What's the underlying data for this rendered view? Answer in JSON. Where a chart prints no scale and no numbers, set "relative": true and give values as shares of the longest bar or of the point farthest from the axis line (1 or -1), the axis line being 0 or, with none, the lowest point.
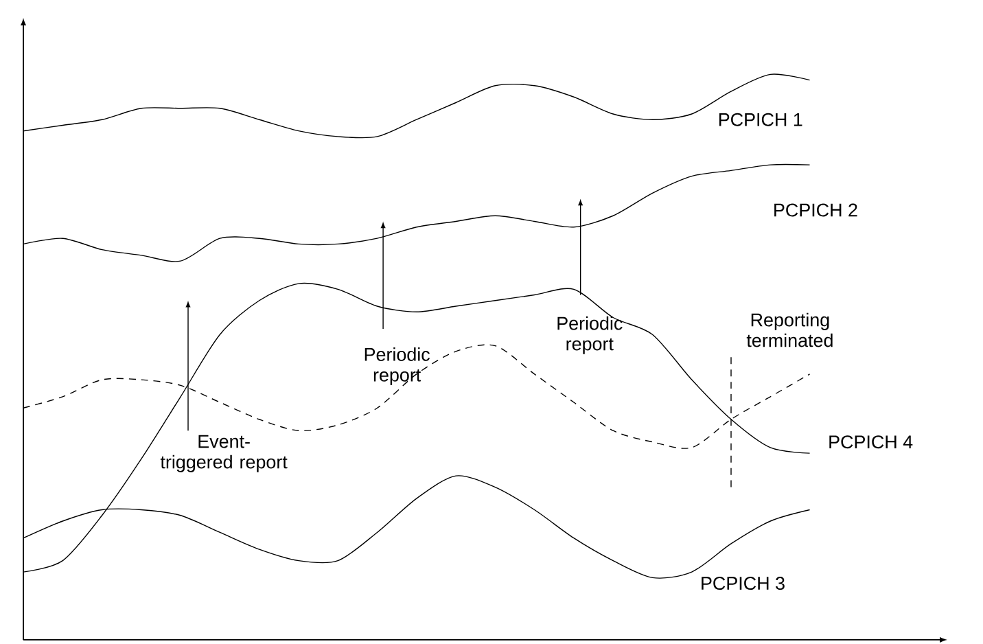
{
  "chart_data": {
    "type": "line",
    "relative": true,
    "categories": [
      null,
      null,
      null,
      null,
      null,
      null,
      null,
      null,
      null,
      null,
      null,
      null,
      null,
      null,
      null,
      null,
      null,
      null,
      null,
      null,
      null
    ],
    "series": [
      {
        "name": "PCPICH 1",
        "color": "#000000",
        "values": [
          0.9,
          0.91,
          0.92,
          0.94,
          0.94,
          0.94,
          0.92,
          0.9,
          0.89,
          0.89,
          0.92,
          0.95,
          0.98,
          0.98,
          0.96,
          0.93,
          0.92,
          0.93,
          0.97,
          1.0,
          0.99
        ]
      },
      {
        "name": "PCPICH 2",
        "color": "#000000",
        "values": [
          0.7,
          0.71,
          0.69,
          0.68,
          0.67,
          0.71,
          0.71,
          0.7,
          0.7,
          0.71,
          0.73,
          0.74,
          0.75,
          0.74,
          0.73,
          0.75,
          0.79,
          0.82,
          0.83,
          0.84,
          0.84
        ]
      },
      {
        "name": "PCPICH 4",
        "color": "#000000",
        "values": [
          0.12,
          0.14,
          0.22,
          0.32,
          0.43,
          0.54,
          0.6,
          0.63,
          0.62,
          0.59,
          0.58,
          0.59,
          0.6,
          0.61,
          0.62,
          0.57,
          0.54,
          0.46,
          0.39,
          0.34,
          0.33
        ]
      },
      {
        "color": "#000000",
        "line_style": "dashed",
        "values": [
          0.41,
          0.43,
          0.46,
          0.46,
          0.45,
          0.42,
          0.39,
          0.37,
          0.38,
          0.41,
          0.47,
          0.51,
          0.52,
          0.47,
          0.42,
          0.37,
          0.35,
          0.34,
          0.39,
          0.43,
          0.47
        ]
      },
      {
        "name": "PCPICH 3",
        "color": "#000000",
        "values": [
          0.18,
          0.21,
          0.23,
          0.23,
          0.22,
          0.19,
          0.16,
          0.14,
          0.14,
          0.19,
          0.25,
          0.29,
          0.27,
          0.23,
          0.18,
          0.14,
          0.11,
          0.12,
          0.17,
          0.21,
          0.23
        ]
      }
    ],
    "annotations": [
      "Event-triggered report",
      "Periodic report",
      "Periodic report",
      "Reporting terminated"
    ],
    "legend": false,
    "grid": false,
    "marker": "none",
    "line_style": "solid"
  }
}
